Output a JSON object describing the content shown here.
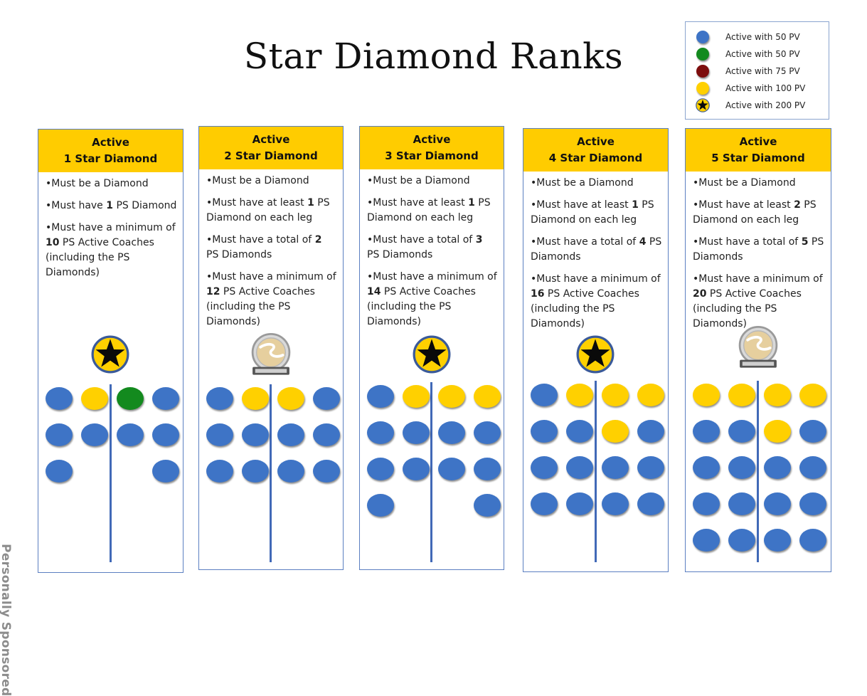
{
  "title": "Star Diamond Ranks",
  "side_label": "Personally Sponsored",
  "legend": [
    {
      "label": "Active with 50 PV",
      "type": "blue"
    },
    {
      "label": "Active with 50 PV",
      "type": "green"
    },
    {
      "label": "Active with 75 PV",
      "type": "red"
    },
    {
      "label": "Active with 100 PV",
      "type": "yellow"
    },
    {
      "label": "Active with 200 PV",
      "type": "star"
    }
  ],
  "colors": {
    "blue": "#3e74c6",
    "green": "#138a1e",
    "red": "#7d0d0d",
    "yellow": "#ffd000",
    "header": "#ffcc00",
    "trunk": "#4169b7"
  },
  "panels": [
    {
      "header_line1": "Active",
      "header_line2": "1 Star Diamond",
      "badge": "star",
      "rules": [
        {
          "pre": "•Must be a Diamond",
          "bold": "",
          "post": ""
        },
        {
          "pre": "•Must have ",
          "bold": "1",
          "post": " PS Diamond"
        },
        {
          "pre": "•Must have a minimum of ",
          "bold": "10",
          "post": " PS Active Coaches (including the PS Diamonds)"
        }
      ],
      "grid": [
        [
          "blue",
          "yellow",
          "green",
          "blue"
        ],
        [
          "blue",
          "blue",
          "blue",
          "blue"
        ],
        [
          "blue",
          "",
          "",
          "blue"
        ]
      ]
    },
    {
      "header_line1": "Active",
      "header_line2": "2 Star Diamond",
      "badge": "beachbody",
      "rules": [
        {
          "pre": "•Must be a Diamond",
          "bold": "",
          "post": ""
        },
        {
          "pre": "•Must have at least ",
          "bold": "1",
          "post": " PS Diamond on each leg"
        },
        {
          "pre": "•Must have a total of ",
          "bold": "2",
          "post": " PS Diamonds"
        },
        {
          "pre": "•Must have a minimum of ",
          "bold": "12",
          "post": " PS Active Coaches (including the PS Diamonds)"
        }
      ],
      "grid": [
        [
          "blue",
          "yellow",
          "yellow",
          "blue"
        ],
        [
          "blue",
          "blue",
          "blue",
          "blue"
        ],
        [
          "blue",
          "blue",
          "blue",
          "blue"
        ]
      ]
    },
    {
      "header_line1": "Active",
      "header_line2": "3 Star Diamond",
      "badge": "star",
      "rules": [
        {
          "pre": "•Must be a Diamond",
          "bold": "",
          "post": ""
        },
        {
          "pre": "•Must have at least ",
          "bold": "1",
          "post": " PS Diamond on each leg"
        },
        {
          "pre": "•Must have a total of ",
          "bold": "3",
          "post": " PS Diamonds"
        },
        {
          "pre": "•Must have a minimum of ",
          "bold": "14",
          "post": " PS Active Coaches (including the PS Diamonds)"
        }
      ],
      "grid": [
        [
          "blue",
          "yellow",
          "yellow",
          "yellow"
        ],
        [
          "blue",
          "blue",
          "blue",
          "blue"
        ],
        [
          "blue",
          "blue",
          "blue",
          "blue"
        ],
        [
          "blue",
          "",
          "",
          "blue"
        ]
      ]
    },
    {
      "header_line1": "Active",
      "header_line2": "4 Star Diamond",
      "badge": "star",
      "rules": [
        {
          "pre": "•Must be a Diamond",
          "bold": "",
          "post": ""
        },
        {
          "pre": "•Must have at least ",
          "bold": "1",
          "post": " PS Diamond on each leg"
        },
        {
          "pre": "•Must have a total of ",
          "bold": "4",
          "post": " PS Diamonds"
        },
        {
          "pre": "•Must have a minimum of ",
          "bold": "16",
          "post": " PS Active Coaches (including the PS Diamonds)"
        }
      ],
      "grid": [
        [
          "blue",
          "yellow",
          "yellow",
          "yellow"
        ],
        [
          "blue",
          "blue",
          "yellow",
          "blue"
        ],
        [
          "blue",
          "blue",
          "blue",
          "blue"
        ],
        [
          "blue",
          "blue",
          "blue",
          "blue"
        ]
      ]
    },
    {
      "header_line1": "Active",
      "header_line2": "5 Star Diamond",
      "badge": "beachbody",
      "rules": [
        {
          "pre": "•Must be a Diamond",
          "bold": "",
          "post": ""
        },
        {
          "pre": "•Must have at least ",
          "bold": "2",
          "post": " PS Diamond on each leg"
        },
        {
          "pre": "•Must have a total of ",
          "bold": "5",
          "post": " PS Diamonds"
        },
        {
          "pre": "•Must have a minimum of ",
          "bold": "20",
          "post": " PS Active Coaches (including the PS Diamonds)"
        }
      ],
      "grid": [
        [
          "yellow",
          "yellow",
          "yellow",
          "yellow"
        ],
        [
          "blue",
          "blue",
          "yellow",
          "blue"
        ],
        [
          "blue",
          "blue",
          "blue",
          "blue"
        ],
        [
          "blue",
          "blue",
          "blue",
          "blue"
        ],
        [
          "blue",
          "blue",
          "blue",
          "blue"
        ]
      ]
    }
  ]
}
